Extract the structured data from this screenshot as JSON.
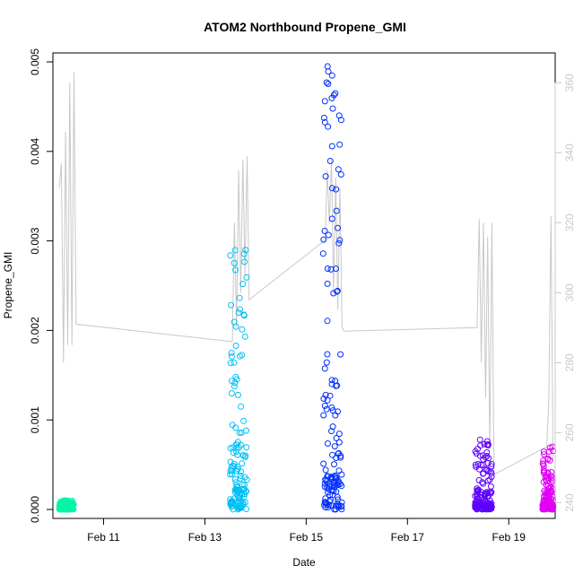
{
  "chart_data": {
    "type": "scatter",
    "title": "ATOM2 Northbound Propene_GMI",
    "xlabel": "Date",
    "ylabel": "Propene_GMI",
    "x_axis": {
      "range": [
        "2016-02-10T00:00",
        "2016-02-19T22:00"
      ],
      "ticks": [
        "Feb 11",
        "Feb 13",
        "Feb 15",
        "Feb 17",
        "Feb 19"
      ]
    },
    "y_axis": {
      "range": [
        0,
        0.005
      ],
      "ticks": [
        "0.000",
        "0.001",
        "0.002",
        "0.003",
        "0.004",
        "0.005"
      ]
    },
    "y2_axis": {
      "range": [
        236,
        368
      ],
      "ticks": [
        "240",
        "260",
        "280",
        "300",
        "320",
        "340",
        "360"
      ],
      "color": "#c8c8c8"
    },
    "series": [
      {
        "color": "#00f5a8",
        "x_range": [
          "2016-02-10T03:00",
          "2016-02-10T10:00"
        ],
        "y_low": 0,
        "y_high": 0.0001
      },
      {
        "color": "#00c0f5",
        "x_range": [
          "2016-02-13T12:00",
          "2016-02-13T20:00"
        ],
        "y_low": 0,
        "y_high": 0.0029
      },
      {
        "color": "#0030ff",
        "x_range": [
          "2016-02-15T08:00",
          "2016-02-15T17:00"
        ],
        "y_low": 0,
        "y_high": 0.00495
      },
      {
        "color": "#5f00ff",
        "x_range": [
          "2016-02-18T08:00",
          "2016-02-18T16:00"
        ],
        "y_low": 0,
        "y_high": 0.00078
      },
      {
        "color": "#e000f5",
        "x_range": [
          "2016-02-19T16:00",
          "2016-02-19T21:00"
        ],
        "y_low": 0,
        "y_high": 0.0007
      }
    ],
    "secondary_line": {
      "color": "#c8c8c8",
      "points": [
        [
          "2016-02-10T03:00",
          330
        ],
        [
          "2016-02-10T04:00",
          337
        ],
        [
          "2016-02-10T05:00",
          280
        ],
        [
          "2016-02-10T06:00",
          346
        ],
        [
          "2016-02-10T07:00",
          285
        ],
        [
          "2016-02-10T08:00",
          360
        ],
        [
          "2016-02-10T09:00",
          285
        ],
        [
          "2016-02-10T10:00",
          363
        ],
        [
          "2016-02-10T11:00",
          291
        ],
        [
          "2016-02-13T13:00",
          286
        ],
        [
          "2016-02-13T14:00",
          320
        ],
        [
          "2016-02-13T15:00",
          290
        ],
        [
          "2016-02-13T16:00",
          335
        ],
        [
          "2016-02-13T17:00",
          300
        ],
        [
          "2016-02-13T18:00",
          338
        ],
        [
          "2016-02-13T19:00",
          305
        ],
        [
          "2016-02-13T20:00",
          339
        ],
        [
          "2016-02-13T21:00",
          298
        ],
        [
          "2016-02-15T09:00",
          315
        ],
        [
          "2016-02-15T10:00",
          335
        ],
        [
          "2016-02-15T11:00",
          320
        ],
        [
          "2016-02-15T12:00",
          338
        ],
        [
          "2016-02-15T13:00",
          300
        ],
        [
          "2016-02-15T14:00",
          333
        ],
        [
          "2016-02-15T15:00",
          295
        ],
        [
          "2016-02-15T16:00",
          330
        ],
        [
          "2016-02-15T17:00",
          290
        ],
        [
          "2016-02-15T18:00",
          289
        ],
        [
          "2016-02-18T09:00",
          290
        ],
        [
          "2016-02-18T10:00",
          321
        ],
        [
          "2016-02-18T11:00",
          280
        ],
        [
          "2016-02-18T12:00",
          320
        ],
        [
          "2016-02-18T13:00",
          270
        ],
        [
          "2016-02-18T14:00",
          316
        ],
        [
          "2016-02-18T15:00",
          255
        ],
        [
          "2016-02-18T16:00",
          320
        ],
        [
          "2016-02-18T17:00",
          248
        ],
        [
          "2016-02-19T18:00",
          256
        ],
        [
          "2016-02-19T19:00",
          270
        ],
        [
          "2016-02-19T20:00",
          322
        ],
        [
          "2016-02-19T21:00",
          252
        ]
      ]
    },
    "grid": false,
    "legend": "none"
  }
}
